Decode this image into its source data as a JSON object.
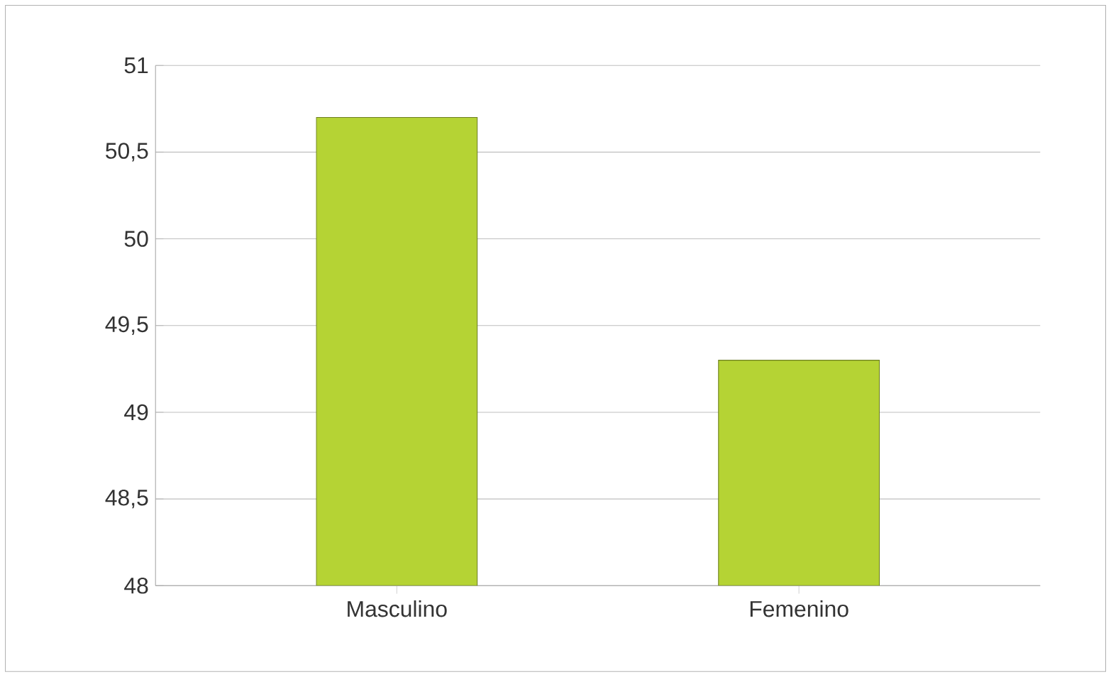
{
  "chart_data": {
    "type": "bar",
    "categories": [
      "Masculino",
      "Femenino"
    ],
    "values": [
      50.7,
      49.3
    ],
    "color": "#b5d334",
    "ylim": [
      48,
      51
    ],
    "yticks": [
      48,
      {
        "value": 48.5,
        "label": "48,5"
      },
      49,
      {
        "value": 49.5,
        "label": "49,5"
      },
      50,
      {
        "value": 50.5,
        "label": "50,5"
      },
      51
    ],
    "grid": "y"
  }
}
